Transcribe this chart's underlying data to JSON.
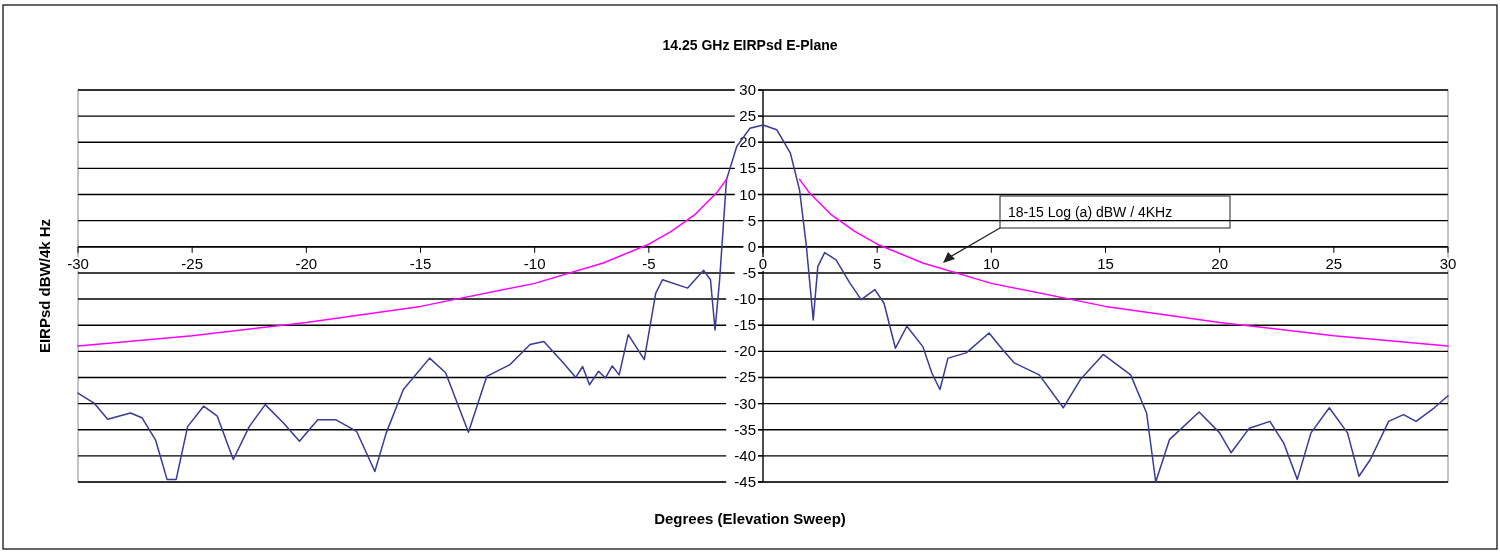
{
  "chart_data": {
    "type": "line",
    "title": "14.25 GHz EIRPsd E-Plane",
    "xlabel": "Degrees (Elevation Sweep)",
    "ylabel": "EIRPsd dBW/4k Hz",
    "xlim": [
      -30,
      30
    ],
    "xticks": [
      -30,
      -25,
      -20,
      -15,
      -10,
      -5,
      0,
      5,
      10,
      15,
      20,
      25,
      30
    ],
    "ylim": [
      -45,
      30
    ],
    "yticks": [
      -45,
      -40,
      -35,
      -30,
      -25,
      -20,
      -15,
      -10,
      -5,
      0,
      5,
      10,
      15,
      20,
      25,
      30
    ],
    "grid": "y",
    "marker": "none",
    "line_style": "solid",
    "series": [
      {
        "color": "#3a3a98",
        "x": [
          -30,
          -29.3,
          -28.7,
          -27.7,
          -27.2,
          -26.6,
          -26.1,
          -25.7,
          -25.2,
          -24.5,
          -23.9,
          -23.2,
          -22.5,
          -21.8,
          -21.0,
          -20.3,
          -19.5,
          -18.7,
          -17.8,
          -17.0,
          -16.5,
          -15.75,
          -14.6,
          -13.9,
          -12.9,
          -12.1,
          -11.1,
          -10.2,
          -9.6,
          -8.75,
          -8.2,
          -7.9,
          -7.6,
          -7.2,
          -6.9,
          -6.6,
          -6.3,
          -5.9,
          -5.2,
          -4.7,
          -4.4,
          -3.3,
          -2.6,
          -2.3,
          -2.1,
          -1.9,
          -1.6,
          -1.15,
          -0.57,
          0,
          0.6,
          1.2,
          1.6,
          1.9,
          2.2,
          2.4,
          2.7,
          3.2,
          3.8,
          4.3,
          4.9,
          5.3,
          5.8,
          6.3,
          7.0,
          7.4,
          7.75,
          8.1,
          8.9,
          9.9,
          10.5,
          11.0,
          12.1,
          13.15,
          13.9,
          14.9,
          16.1,
          16.8,
          17.2,
          17.8,
          19.1,
          20.0,
          20.5,
          21.3,
          22.2,
          22.8,
          23.4,
          24.0,
          24.8,
          25.6,
          26.1,
          26.6,
          27.4,
          28.05,
          28.6,
          29.4,
          30
        ],
        "values": [
          -28,
          -29.9,
          -33,
          -31.8,
          -32.7,
          -37,
          -44.5,
          -44.5,
          -34.4,
          -30.5,
          -32.4,
          -40.7,
          -34.4,
          -30.2,
          -33.7,
          -37.2,
          -33.1,
          -33.1,
          -35.3,
          -43,
          -35.6,
          -27.3,
          -21.3,
          -24.1,
          -35.5,
          -24.8,
          -22.6,
          -18.7,
          -18.1,
          -22.2,
          -25,
          -22.9,
          -26.4,
          -23.8,
          -25.1,
          -22.8,
          -24.5,
          -16.8,
          -21.6,
          -8.9,
          -6.3,
          -7.9,
          -4.5,
          -6.3,
          -15.9,
          -6.3,
          12.8,
          19.2,
          22.7,
          23.3,
          22.4,
          17.9,
          10.9,
          0.1,
          -14,
          -3.8,
          -1.1,
          -2.5,
          -6.9,
          -10.1,
          -8.2,
          -10.8,
          -19.4,
          -15.2,
          -19.1,
          -24.2,
          -27.3,
          -21.3,
          -20.3,
          -16.5,
          -19.7,
          -22.2,
          -24.5,
          -30.8,
          -25.4,
          -20.6,
          -24.5,
          -31.8,
          -45,
          -36.9,
          -31.6,
          -35.6,
          -39.4,
          -34.7,
          -33.4,
          -37.5,
          -44.5,
          -35.6,
          -30.8,
          -35.6,
          -43.9,
          -40.7,
          -33.4,
          -32.1,
          -33.4,
          -30.8,
          -28.5
        ]
      },
      {
        "color": "#ff00ff",
        "x": [
          -30,
          -25,
          -20,
          -15,
          -10,
          -7,
          -5,
          -4,
          -3,
          -2,
          -1.6,
          0,
          1.6,
          2,
          3,
          4,
          5,
          7,
          10,
          15,
          20,
          25,
          30
        ],
        "values": [
          -19,
          -17,
          -14.5,
          -11.4,
          -7,
          -3.1,
          0.5,
          3,
          6.1,
          10.5,
          12.9,
          null,
          12.9,
          10.5,
          6.1,
          3,
          0.5,
          -3.1,
          -7,
          -11.4,
          -14.5,
          -17,
          -19
        ]
      }
    ],
    "annotations": [
      "18-15 Log (a) dBW / 4KHz"
    ]
  }
}
